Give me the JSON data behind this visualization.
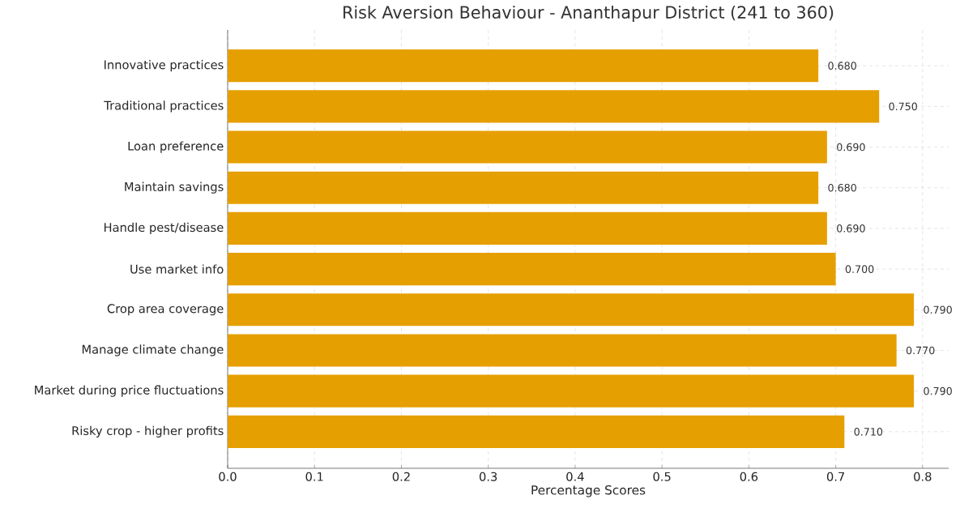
{
  "chart_data": {
    "type": "bar",
    "orientation": "horizontal",
    "title": "Risk Aversion Behaviour - Ananthapur District (241 to 360)",
    "xlabel": "Percentage Scores",
    "categories": [
      "Innovative practices",
      "Traditional practices",
      "Loan preference",
      "Maintain savings",
      "Handle pest/disease",
      "Use market info",
      "Crop area coverage",
      "Manage climate change",
      "Market during price fluctuations",
      "Risky crop - higher profits"
    ],
    "values": [
      0.68,
      0.75,
      0.69,
      0.68,
      0.69,
      0.7,
      0.79,
      0.77,
      0.79,
      0.71
    ],
    "value_labels": [
      "0.680",
      "0.750",
      "0.690",
      "0.680",
      "0.690",
      "0.700",
      "0.790",
      "0.770",
      "0.790",
      "0.710"
    ],
    "color": "#e69f00",
    "xlim": [
      0,
      0.83
    ],
    "xticks": [
      {
        "value": 0,
        "label": "0.0"
      },
      0.1,
      0.2,
      0.3,
      0.4,
      0.5,
      0.6,
      0.7,
      0.8
    ],
    "grid": true
  }
}
